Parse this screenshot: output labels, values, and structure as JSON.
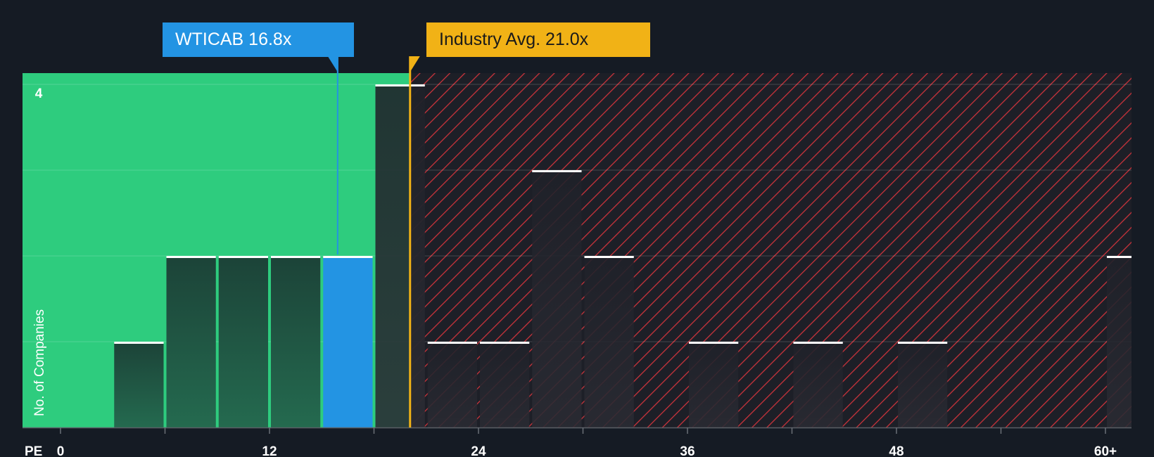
{
  "chart_data": {
    "type": "bar",
    "xlabel": "PE",
    "ylabel": "No. of Companies",
    "bin_width": 3,
    "xlim": [
      -2,
      61.4
    ],
    "ylim": [
      0,
      4
    ],
    "x_ticks": [
      0,
      12,
      24,
      36,
      48,
      60
    ],
    "x_tick_labels": [
      "0",
      "12",
      "24",
      "36",
      "48",
      "60+"
    ],
    "y_tick_labels": [
      {
        "value": 4,
        "label": "4"
      }
    ],
    "bins": [
      {
        "start": 3,
        "value": 1
      },
      {
        "start": 6,
        "value": 2
      },
      {
        "start": 9,
        "value": 2
      },
      {
        "start": 12,
        "value": 2
      },
      {
        "start": 15,
        "value": 2,
        "highlight": true
      },
      {
        "start": 18,
        "value": 4
      },
      {
        "start": 21,
        "value": 1
      },
      {
        "start": 24,
        "value": 1
      },
      {
        "start": 27,
        "value": 3
      },
      {
        "start": 30,
        "value": 2
      },
      {
        "start": 36,
        "value": 1
      },
      {
        "start": 42,
        "value": 1
      },
      {
        "start": 48,
        "value": 1
      },
      {
        "start": 60,
        "value": 2
      }
    ],
    "company": {
      "label": "WTICAB 16.8x",
      "value": 16.8
    },
    "industry": {
      "label": "Industry Avg. 21.0x",
      "value": 21.0
    },
    "colors": {
      "background": "#151b24",
      "undervalued_zone": "#2ecc7e",
      "overvalued_stripe": "#c9333b",
      "company": "#2394e3",
      "industry": "#f1b216",
      "bar_in_green": "#1f4a3e",
      "bar_in_red": "#222630"
    }
  }
}
